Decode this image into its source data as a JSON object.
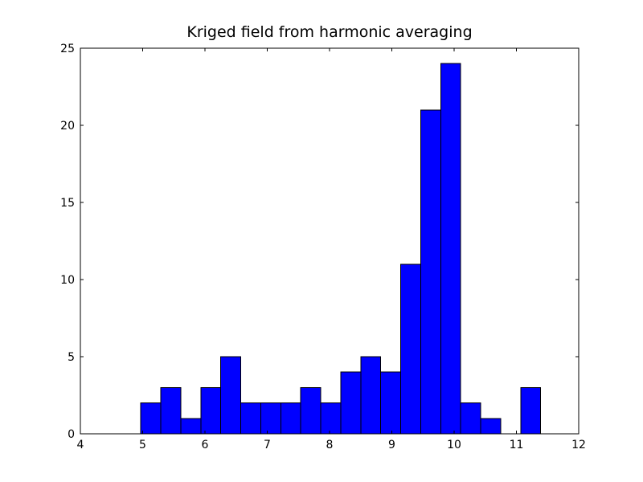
{
  "figure": {
    "background": "#ffffff"
  },
  "chart_data": {
    "type": "bar",
    "variant": "histogram",
    "title": "Kriged field from harmonic averaging",
    "xlabel": "",
    "ylabel": "",
    "xlim": [
      4,
      12
    ],
    "ylim": [
      0,
      25
    ],
    "xticks": [
      4,
      5,
      6,
      7,
      8,
      9,
      10,
      11,
      12
    ],
    "yticks": [
      0,
      5,
      10,
      15,
      20,
      25
    ],
    "grid": false,
    "legend_position": "none",
    "bar_fill": "#0000ff",
    "bar_edge": "#000000",
    "axis_color": "#000000",
    "bins": {
      "start": 4.97,
      "width": 0.321,
      "counts": [
        2,
        3,
        1,
        3,
        5,
        2,
        2,
        2,
        3,
        2,
        4,
        5,
        4,
        11,
        21,
        24,
        2,
        1,
        0,
        3
      ]
    },
    "total_samples": 100
  }
}
